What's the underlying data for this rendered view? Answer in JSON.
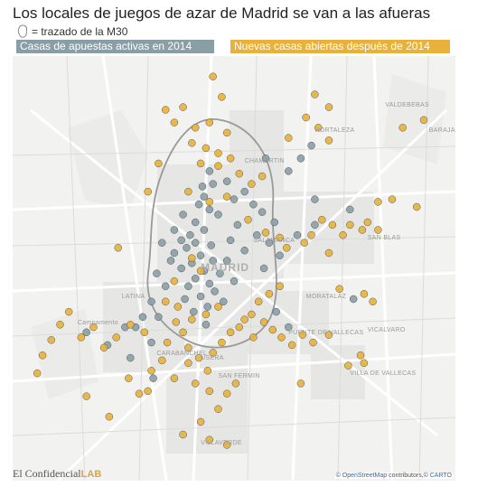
{
  "title": "Los locales de juegos de azar de Madrid se van a las afueras",
  "m30_legend": {
    "text": "= trazado de la M30",
    "icon": "m30-outline-icon"
  },
  "legend": {
    "active_2014": {
      "label": "Casas de apuestas activas en 2014",
      "color": "#8a9ea6"
    },
    "new_after_2014": {
      "label": "Nuevas casas abiertas después de 2014",
      "color": "#e8b13a"
    }
  },
  "map": {
    "places": [
      {
        "name": "VALDEBEBAS",
        "lon": -3.6,
        "lat": 40.48
      },
      {
        "name": "HORTALEZA",
        "lon": -3.64,
        "lat": 40.47
      },
      {
        "name": "BARAJAS",
        "lon": -3.575,
        "lat": 40.47
      },
      {
        "name": "CHAMARTIN",
        "lon": -3.68,
        "lat": 40.458
      },
      {
        "name": "SALAMANCA",
        "lon": -3.675,
        "lat": 40.427
      },
      {
        "name": "SAN BLAS",
        "lon": -3.61,
        "lat": 40.428
      },
      {
        "name": "MADRID",
        "lon": -3.705,
        "lat": 40.418,
        "big": true
      },
      {
        "name": "MORATALAZ",
        "lon": -3.645,
        "lat": 40.405
      },
      {
        "name": "LATINA",
        "lon": -3.75,
        "lat": 40.405
      },
      {
        "name": "PUENTE DE VALLECAS",
        "lon": -3.655,
        "lat": 40.391
      },
      {
        "name": "VICALVARO",
        "lon": -3.61,
        "lat": 40.392
      },
      {
        "name": "VILLA DE VALLECAS",
        "lon": -3.62,
        "lat": 40.375
      },
      {
        "name": "SAN FERMIN",
        "lon": -3.695,
        "lat": 40.374
      },
      {
        "name": "CARABANCHEL",
        "lon": -3.73,
        "lat": 40.383
      },
      {
        "name": "USERA",
        "lon": -3.705,
        "lat": 40.381
      },
      {
        "name": "VILLAVERDE",
        "lon": -3.705,
        "lat": 40.348
      },
      {
        "name": "Campamento",
        "lon": -3.775,
        "lat": 40.395
      }
    ],
    "active_2014": [
      [
        -3.7,
        40.453
      ],
      [
        -3.698,
        40.448
      ],
      [
        -3.703,
        40.443
      ],
      [
        -3.706,
        40.44
      ],
      [
        -3.7,
        40.438
      ],
      [
        -3.695,
        40.436
      ],
      [
        -3.708,
        40.433
      ],
      [
        -3.703,
        40.43
      ],
      [
        -3.711,
        40.428
      ],
      [
        -3.716,
        40.426
      ],
      [
        -3.708,
        40.425
      ],
      [
        -3.699,
        40.424
      ],
      [
        -3.713,
        40.423
      ],
      [
        -3.72,
        40.421
      ],
      [
        -3.705,
        40.42
      ],
      [
        -3.698,
        40.418
      ],
      [
        -3.71,
        40.417
      ],
      [
        -3.716,
        40.415
      ],
      [
        -3.703,
        40.414
      ],
      [
        -3.694,
        40.413
      ],
      [
        -3.708,
        40.411
      ],
      [
        -3.7,
        40.409
      ],
      [
        -3.712,
        40.408
      ],
      [
        -3.697,
        40.406
      ],
      [
        -3.705,
        40.404
      ],
      [
        -3.714,
        40.403
      ],
      [
        -3.692,
        40.402
      ],
      [
        -3.701,
        40.4
      ],
      [
        -3.709,
        40.398
      ],
      [
        -3.72,
        40.43
      ],
      [
        -3.727,
        40.425
      ],
      [
        -3.722,
        40.418
      ],
      [
        -3.73,
        40.413
      ],
      [
        -3.725,
        40.408
      ],
      [
        -3.733,
        40.402
      ],
      [
        -3.738,
        40.396
      ],
      [
        -3.686,
        40.442
      ],
      [
        -3.68,
        40.445
      ],
      [
        -3.675,
        40.44
      ],
      [
        -3.67,
        40.437
      ],
      [
        -3.663,
        40.433
      ],
      [
        -3.673,
        40.428
      ],
      [
        -3.666,
        40.425
      ],
      [
        -3.68,
        40.422
      ],
      [
        -3.684,
        40.432
      ],
      [
        -3.688,
        40.426
      ],
      [
        -3.69,
        40.418
      ],
      [
        -3.686,
        40.41
      ],
      [
        -3.669,
        40.415
      ],
      [
        -3.66,
        40.42
      ],
      [
        -3.65,
        40.428
      ],
      [
        -3.64,
        40.432
      ],
      [
        -3.62,
        40.438
      ],
      [
        -3.642,
        40.463
      ],
      [
        -3.648,
        40.458
      ],
      [
        -3.668,
        40.458
      ],
      [
        -3.655,
        40.453
      ],
      [
        -3.662,
        40.398
      ],
      [
        -3.655,
        40.392
      ],
      [
        -3.618,
        40.403
      ],
      [
        -3.748,
        40.392
      ],
      [
        -3.758,
        40.385
      ],
      [
        -3.745,
        40.38
      ],
      [
        -3.77,
        40.39
      ],
      [
        -3.733,
        40.386
      ],
      [
        -3.732,
        40.372
      ],
      [
        -3.742,
        40.392
      ],
      [
        -3.704,
        40.447
      ],
      [
        -3.69,
        40.449
      ],
      [
        -3.715,
        40.436
      ],
      [
        -3.702,
        40.393
      ],
      [
        -3.729,
        40.396
      ],
      [
        -3.64,
        40.442
      ]
    ],
    "new_after_2014": [
      [
        -3.698,
        40.49
      ],
      [
        -3.693,
        40.482
      ],
      [
        -3.715,
        40.478
      ],
      [
        -3.725,
        40.477
      ],
      [
        -3.72,
        40.472
      ],
      [
        -3.708,
        40.47
      ],
      [
        -3.7,
        40.472
      ],
      [
        -3.69,
        40.468
      ],
      [
        -3.71,
        40.464
      ],
      [
        -3.702,
        40.462
      ],
      [
        -3.695,
        40.46
      ],
      [
        -3.688,
        40.458
      ],
      [
        -3.705,
        40.456
      ],
      [
        -3.695,
        40.455
      ],
      [
        -3.683,
        40.452
      ],
      [
        -3.676,
        40.448
      ],
      [
        -3.67,
        40.451
      ],
      [
        -3.69,
        40.443
      ],
      [
        -3.7,
        40.441
      ],
      [
        -3.678,
        40.434
      ],
      [
        -3.668,
        40.429
      ],
      [
        -3.66,
        40.427
      ],
      [
        -3.64,
        40.483
      ],
      [
        -3.632,
        40.478
      ],
      [
        -3.645,
        40.474
      ],
      [
        -3.638,
        40.47
      ],
      [
        -3.632,
        40.465
      ],
      [
        -3.655,
        40.466
      ],
      [
        -3.578,
        40.473
      ],
      [
        -3.596,
        40.442
      ],
      [
        -3.604,
        40.441
      ],
      [
        -3.582,
        40.439
      ],
      [
        -3.61,
        40.433
      ],
      [
        -3.604,
        40.43
      ],
      [
        -3.624,
        40.428
      ],
      [
        -3.63,
        40.432
      ],
      [
        -3.636,
        40.434
      ],
      [
        -3.642,
        40.428
      ],
      [
        -3.646,
        40.425
      ],
      [
        -3.632,
        40.421
      ],
      [
        -3.656,
        40.423
      ],
      [
        -3.613,
        40.43
      ],
      [
        -3.62,
        40.432
      ],
      [
        -3.66,
        40.408
      ],
      [
        -3.666,
        40.405
      ],
      [
        -3.672,
        40.402
      ],
      [
        -3.676,
        40.397
      ],
      [
        -3.669,
        40.394
      ],
      [
        -3.664,
        40.391
      ],
      [
        -3.659,
        40.388
      ],
      [
        -3.653,
        40.385
      ],
      [
        -3.647,
        40.389
      ],
      [
        -3.641,
        40.386
      ],
      [
        -3.632,
        40.389
      ],
      [
        -3.626,
        40.407
      ],
      [
        -3.612,
        40.405
      ],
      [
        -3.607,
        40.402
      ],
      [
        -3.614,
        40.381
      ],
      [
        -3.621,
        40.377
      ],
      [
        -3.612,
        40.378
      ],
      [
        -3.648,
        40.37
      ],
      [
        -3.68,
        40.395
      ],
      [
        -3.688,
        40.39
      ],
      [
        -3.693,
        40.386
      ],
      [
        -3.698,
        40.382
      ],
      [
        -3.706,
        40.38
      ],
      [
        -3.712,
        40.384
      ],
      [
        -3.715,
        40.39
      ],
      [
        -3.719,
        40.394
      ],
      [
        -3.724,
        40.386
      ],
      [
        -3.712,
        40.378
      ],
      [
        -3.701,
        40.375
      ],
      [
        -3.708,
        40.37
      ],
      [
        -3.69,
        40.366
      ],
      [
        -3.685,
        40.37
      ],
      [
        -3.695,
        40.36
      ],
      [
        -3.705,
        40.355
      ],
      [
        -3.7,
        40.348
      ],
      [
        -3.69,
        40.346
      ],
      [
        -3.715,
        40.35
      ],
      [
        -3.745,
        40.393
      ],
      [
        -3.753,
        40.388
      ],
      [
        -3.76,
        40.384
      ],
      [
        -3.766,
        40.392
      ],
      [
        -3.773,
        40.388
      ],
      [
        -3.78,
        40.398
      ],
      [
        -3.785,
        40.393
      ],
      [
        -3.79,
        40.387
      ],
      [
        -3.795,
        40.381
      ],
      [
        -3.798,
        40.374
      ],
      [
        -3.77,
        40.365
      ],
      [
        -3.757,
        40.357
      ],
      [
        -3.74,
        40.366
      ],
      [
        -3.746,
        40.372
      ],
      [
        -3.733,
        40.375
      ],
      [
        -3.727,
        40.379
      ],
      [
        -3.718,
        40.4
      ],
      [
        -3.725,
        40.402
      ],
      [
        -3.72,
        40.41
      ],
      [
        -3.712,
        40.445
      ],
      [
        -3.702,
        40.397
      ],
      [
        -3.695,
        40.4
      ],
      [
        -3.7,
        40.367
      ],
      [
        -3.72,
        40.372
      ],
      [
        -3.735,
        40.367
      ],
      [
        -3.705,
        40.414
      ],
      [
        -3.71,
        40.419
      ],
      [
        -3.729,
        40.456
      ],
      [
        -3.735,
        40.445
      ],
      [
        -3.752,
        40.423
      ],
      [
        -3.737,
        40.39
      ],
      [
        -3.71,
        40.395
      ],
      [
        -3.675,
        40.388
      ],
      [
        -3.683,
        40.392
      ],
      [
        -3.59,
        40.47
      ]
    ]
  },
  "brand": {
    "main": "El Confidencial",
    "lab": "LAB"
  },
  "attribution": {
    "osm": "© OpenStreetMap",
    "contrib": " contributors,©",
    "carto": "CARTO"
  }
}
